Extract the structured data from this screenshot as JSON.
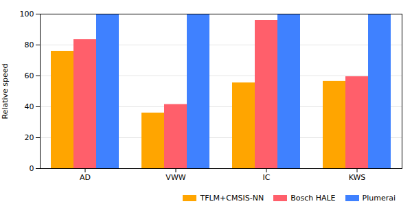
{
  "chart_data": {
    "type": "bar",
    "categories": [
      "AD",
      "VWW",
      "IC",
      "KWS"
    ],
    "series": [
      {
        "name": "TFLM+CMSIS-NN",
        "color": "#ffa500",
        "values": [
          76,
          36,
          55.5,
          56.5
        ]
      },
      {
        "name": "Bosch HALE",
        "color": "#ff5f6b",
        "values": [
          83.5,
          41.5,
          96,
          59.5
        ]
      },
      {
        "name": "Plumerai",
        "color": "#3f81ff",
        "values": [
          100,
          100,
          100,
          100
        ]
      }
    ],
    "y_label": "Relative speed",
    "ylim": [
      0,
      100
    ],
    "yticks": [
      0,
      20,
      40,
      60,
      80,
      100
    ],
    "grid": true,
    "legend": "lower right"
  }
}
